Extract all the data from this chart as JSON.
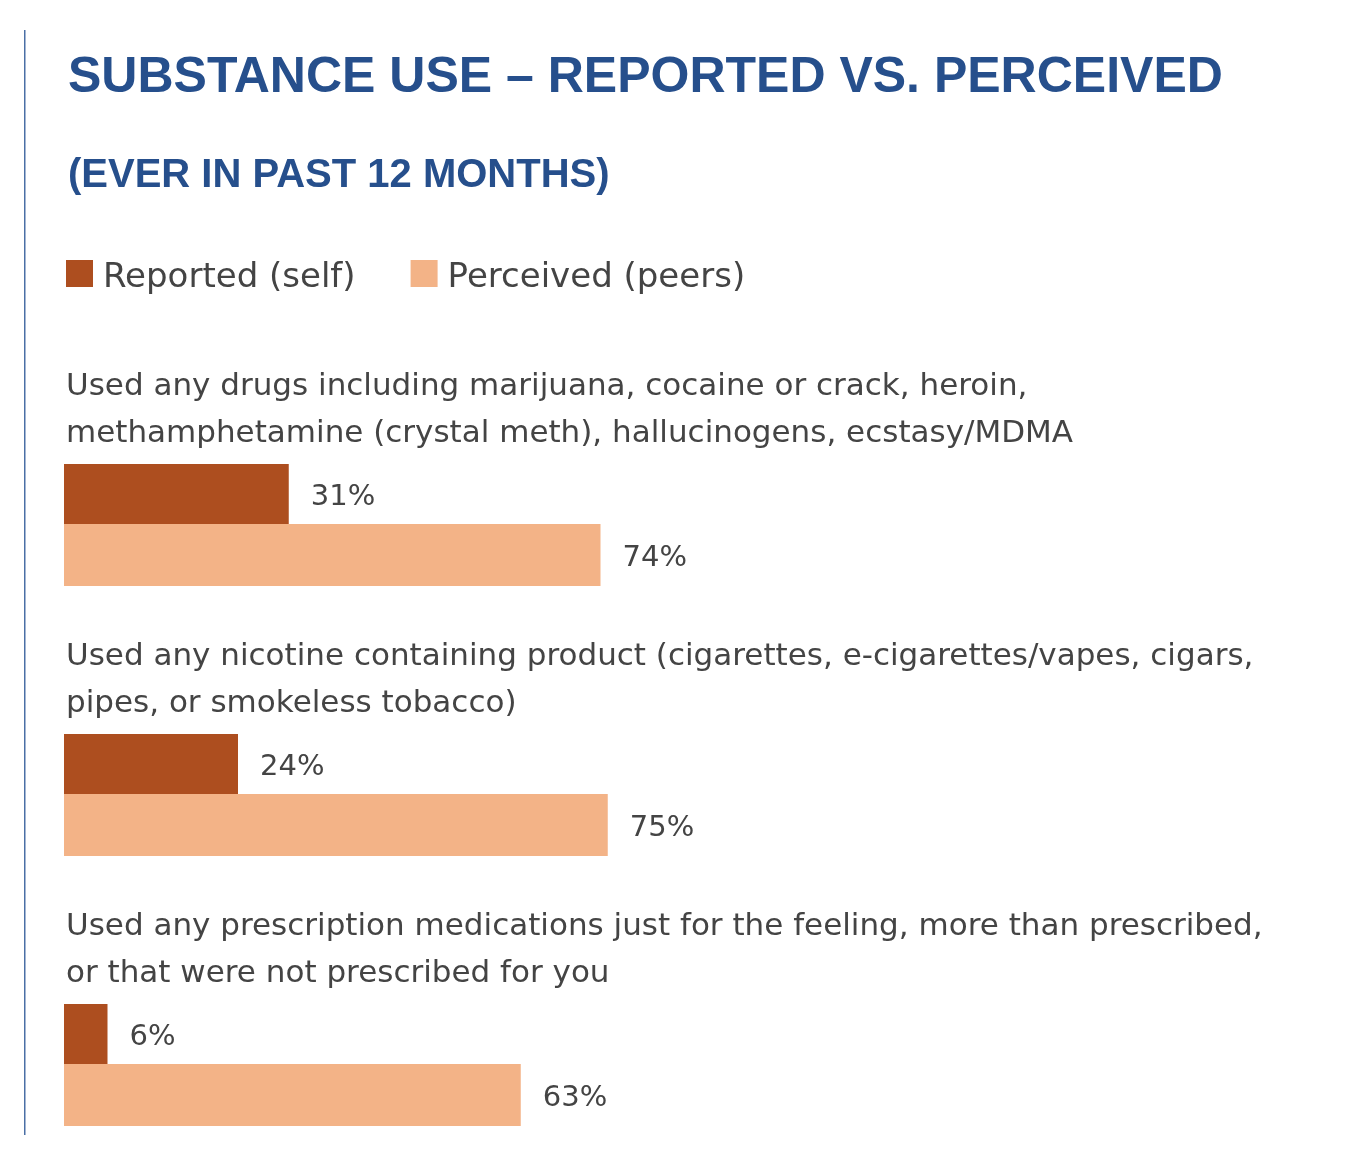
{
  "chart_data": {
    "type": "bar",
    "orientation": "horizontal",
    "title": "SUBSTANCE USE – REPORTED VS. PERCEIVED",
    "subtitle": "(EVER IN PAST 12 MONTHS)",
    "categories": [
      "Used any drugs including marijuana, cocaine or crack, heroin, methamphetamine (crystal meth), hallucinogens, ecstasy/MDMA",
      "Used any nicotine containing product (cigarettes, e-cigarettes/vapes, cigars, pipes, or smokeless tobacco)",
      "Used any prescription medications just for the feeling, more than prescribed, or that were not prescribed for you"
    ],
    "series": [
      {
        "name": "Reported (self)",
        "color": "#ad4e1f",
        "values": [
          31,
          24,
          6
        ],
        "value_labels": [
          "31%",
          "24%",
          "6%"
        ]
      },
      {
        "name": "Perceived (peers)",
        "color": "#f3b387",
        "values": [
          74,
          75,
          63
        ],
        "value_labels": [
          "74%",
          "75%",
          "63%"
        ]
      }
    ],
    "legend": "top"
  }
}
